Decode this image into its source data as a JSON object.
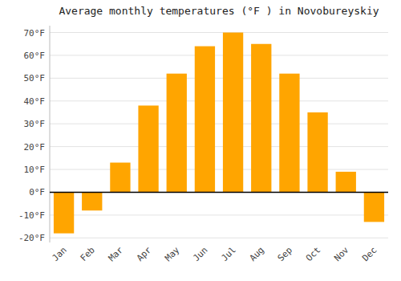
{
  "chart_data": {
    "type": "bar",
    "title": "Average monthly temperatures (°F ) in Novobureyskiy",
    "categories": [
      "Jan",
      "Feb",
      "Mar",
      "Apr",
      "May",
      "Jun",
      "Jul",
      "Aug",
      "Sep",
      "Oct",
      "Nov",
      "Dec"
    ],
    "values": [
      -18,
      -8,
      13,
      38,
      52,
      64,
      70,
      65,
      52,
      35,
      9,
      -13
    ],
    "color": "#FFA500",
    "ylim": [
      -22,
      73
    ],
    "yticks": [
      {
        "value": -20,
        "label": "-20°F"
      },
      {
        "value": -10,
        "label": "-10°F"
      },
      {
        "value": 0,
        "label": "0°F"
      },
      {
        "value": 10,
        "label": "10°F"
      },
      {
        "value": 20,
        "label": "20°F"
      },
      {
        "value": 30,
        "label": "30°F"
      },
      {
        "value": 40,
        "label": "40°F"
      },
      {
        "value": 50,
        "label": "50°F"
      },
      {
        "value": 60,
        "label": "60°F"
      },
      {
        "value": 70,
        "label": "70°F"
      }
    ],
    "grid": true
  }
}
